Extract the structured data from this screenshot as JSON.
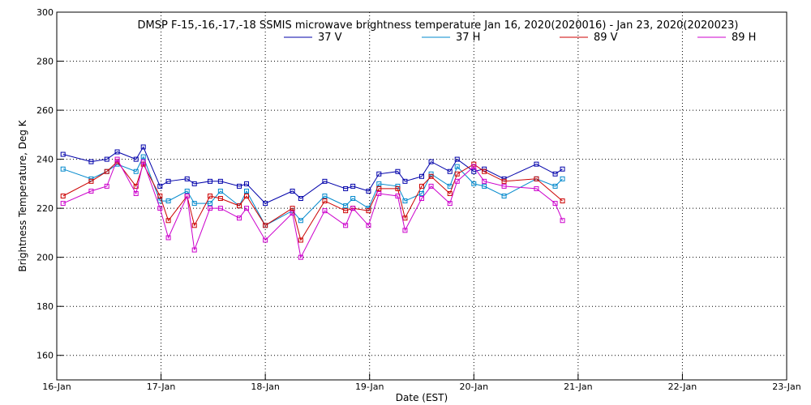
{
  "chart_data": {
    "type": "line",
    "title": "DMSP F-15,-16,-17,-18 SSMIS microwave brightness temperature Jan 16, 2020(2020016) - Jan 23, 2020(2020023)",
    "xlabel": "Date (EST)",
    "ylabel": "Brightness Temperature, Deg K",
    "xlim": [
      0,
      7
    ],
    "ylim": [
      150,
      300
    ],
    "x_ticks": [
      {
        "value": 0,
        "label": "16-Jan"
      },
      {
        "value": 1,
        "label": "17-Jan"
      },
      {
        "value": 2,
        "label": "18-Jan"
      },
      {
        "value": 3,
        "label": "19-Jan"
      },
      {
        "value": 4,
        "label": "20-Jan"
      },
      {
        "value": 5,
        "label": "21-Jan"
      },
      {
        "value": 6,
        "label": "22-Jan"
      },
      {
        "value": 7,
        "label": "23-Jan"
      }
    ],
    "y_ticks": [
      {
        "value": 160,
        "label": "160"
      },
      {
        "value": 180,
        "label": "180"
      },
      {
        "value": 200,
        "label": "200"
      },
      {
        "value": 220,
        "label": "220"
      },
      {
        "value": 240,
        "label": "240"
      },
      {
        "value": 260,
        "label": "260"
      },
      {
        "value": 280,
        "label": "280"
      },
      {
        "value": 300,
        "label": "300"
      }
    ],
    "grid": true,
    "legend_position": "top",
    "series": [
      {
        "name": "37 V",
        "color": "#0000aa",
        "points": [
          [
            0.06,
            242
          ],
          [
            0.33,
            239
          ],
          [
            0.48,
            240
          ],
          [
            0.58,
            243
          ],
          [
            0.76,
            240
          ],
          [
            0.83,
            245
          ],
          [
            0.99,
            229
          ],
          [
            1.07,
            231
          ],
          [
            1.25,
            232
          ],
          [
            1.32,
            230
          ],
          [
            1.47,
            231
          ],
          [
            1.57,
            231
          ],
          [
            1.75,
            229
          ],
          [
            1.82,
            230
          ],
          [
            2.0,
            222
          ],
          [
            2.26,
            227
          ],
          [
            2.34,
            224
          ],
          [
            2.57,
            231
          ],
          [
            2.77,
            228
          ],
          [
            2.84,
            229
          ],
          [
            2.99,
            227
          ],
          [
            3.09,
            234
          ],
          [
            3.27,
            235
          ],
          [
            3.34,
            231
          ],
          [
            3.5,
            233
          ],
          [
            3.59,
            239
          ],
          [
            3.77,
            235
          ],
          [
            3.84,
            240
          ],
          [
            4.0,
            235
          ],
          [
            4.1,
            236
          ],
          [
            4.29,
            232
          ],
          [
            4.6,
            238
          ],
          [
            4.78,
            234
          ],
          [
            4.85,
            236
          ]
        ]
      },
      {
        "name": "37 H",
        "color": "#0088cc",
        "points": [
          [
            0.06,
            236
          ],
          [
            0.33,
            232
          ],
          [
            0.48,
            235
          ],
          [
            0.58,
            238
          ],
          [
            0.76,
            235
          ],
          [
            0.83,
            241
          ],
          [
            0.99,
            223
          ],
          [
            1.07,
            223
          ],
          [
            1.25,
            227
          ],
          [
            1.32,
            222
          ],
          [
            1.47,
            222
          ],
          [
            1.57,
            227
          ],
          [
            1.75,
            221
          ],
          [
            1.82,
            227
          ],
          [
            2.0,
            213
          ],
          [
            2.26,
            219
          ],
          [
            2.34,
            215
          ],
          [
            2.57,
            225
          ],
          [
            2.77,
            221
          ],
          [
            2.84,
            224
          ],
          [
            2.99,
            220
          ],
          [
            3.09,
            230
          ],
          [
            3.27,
            229
          ],
          [
            3.34,
            223
          ],
          [
            3.5,
            226
          ],
          [
            3.59,
            234
          ],
          [
            3.77,
            229
          ],
          [
            3.84,
            237
          ],
          [
            4.0,
            230
          ],
          [
            4.1,
            229
          ],
          [
            4.29,
            225
          ],
          [
            4.6,
            232
          ],
          [
            4.78,
            229
          ],
          [
            4.85,
            232
          ]
        ]
      },
      {
        "name": "89 V",
        "color": "#cc0000",
        "points": [
          [
            0.06,
            225
          ],
          [
            0.33,
            231
          ],
          [
            0.48,
            235
          ],
          [
            0.58,
            239
          ],
          [
            0.76,
            229
          ],
          [
            0.83,
            238
          ],
          [
            0.99,
            225
          ],
          [
            1.07,
            215
          ],
          [
            1.25,
            225
          ],
          [
            1.32,
            213
          ],
          [
            1.47,
            225
          ],
          [
            1.57,
            224
          ],
          [
            1.75,
            221
          ],
          [
            1.82,
            225
          ],
          [
            2.0,
            213
          ],
          [
            2.26,
            220
          ],
          [
            2.34,
            207
          ],
          [
            2.57,
            223
          ],
          [
            2.77,
            219
          ],
          [
            2.84,
            220
          ],
          [
            2.99,
            219
          ],
          [
            3.09,
            228
          ],
          [
            3.27,
            228
          ],
          [
            3.34,
            216
          ],
          [
            3.5,
            229
          ],
          [
            3.59,
            233
          ],
          [
            3.77,
            226
          ],
          [
            3.84,
            234
          ],
          [
            4.0,
            238
          ],
          [
            4.1,
            235
          ],
          [
            4.29,
            231
          ],
          [
            4.6,
            232
          ],
          [
            4.85,
            223
          ]
        ]
      },
      {
        "name": "89 H",
        "color": "#cc00cc",
        "points": [
          [
            0.06,
            222
          ],
          [
            0.33,
            227
          ],
          [
            0.48,
            229
          ],
          [
            0.58,
            240
          ],
          [
            0.76,
            226
          ],
          [
            0.83,
            239
          ],
          [
            0.99,
            220
          ],
          [
            1.07,
            208
          ],
          [
            1.25,
            225
          ],
          [
            1.32,
            203
          ],
          [
            1.47,
            220
          ],
          [
            1.57,
            220
          ],
          [
            1.75,
            216
          ],
          [
            1.82,
            220
          ],
          [
            2.0,
            207
          ],
          [
            2.26,
            218
          ],
          [
            2.34,
            200
          ],
          [
            2.57,
            219
          ],
          [
            2.77,
            213
          ],
          [
            2.84,
            220
          ],
          [
            2.99,
            213
          ],
          [
            3.09,
            226
          ],
          [
            3.27,
            225
          ],
          [
            3.34,
            211
          ],
          [
            3.5,
            224
          ],
          [
            3.59,
            229
          ],
          [
            3.77,
            222
          ],
          [
            3.84,
            231
          ],
          [
            4.0,
            237
          ],
          [
            4.1,
            231
          ],
          [
            4.29,
            229
          ],
          [
            4.6,
            228
          ],
          [
            4.78,
            222
          ],
          [
            4.85,
            215
          ]
        ]
      }
    ]
  }
}
